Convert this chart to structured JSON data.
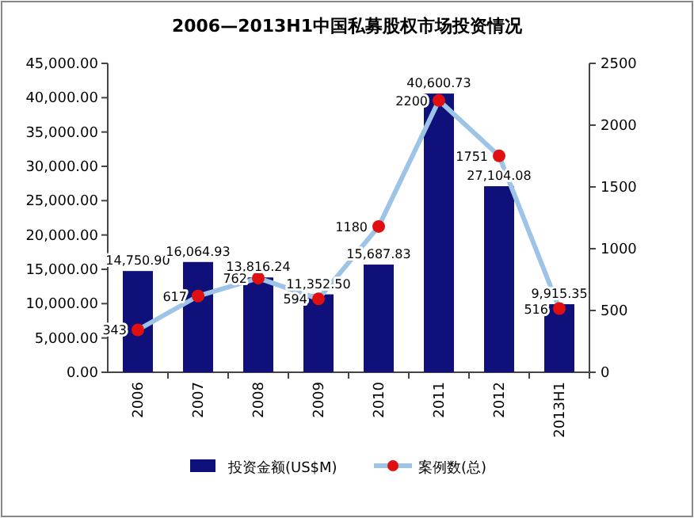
{
  "chart_data": {
    "type": "bar",
    "title": "2006—2013H1中国私募股权市场投资情况",
    "categories": [
      "2006",
      "2007",
      "2008",
      "2009",
      "2010",
      "2011",
      "2012",
      "2013H1"
    ],
    "series": [
      {
        "name": "投资金额(US$M)",
        "color": "#10107a",
        "values": [
          14750.9,
          16064.93,
          13816.24,
          11352.5,
          15687.83,
          40600.73,
          27104.08,
          9915.35
        ],
        "value_labels": [
          "14,750.90",
          "16,064.93",
          "13,816.24",
          "11,352.50",
          "15,687.83",
          "40,600.73",
          "27,104.08",
          "9,915.35"
        ]
      },
      {
        "name": "案例数(总)",
        "type": "line",
        "axis": "y2",
        "color": "#9dc3e6",
        "colors": [
          "#e01010",
          "#e01010",
          "#e01010",
          "#e01010",
          "#e01010",
          "#e01010",
          "#e01010",
          "#e01010"
        ],
        "marker": "circle",
        "values": [
          343,
          617,
          762,
          594,
          1180,
          2200,
          1751,
          516
        ],
        "value_labels": [
          "343",
          "617",
          "762",
          "594",
          "1180",
          "2200",
          "1751",
          "516"
        ]
      }
    ],
    "ylim": [
      0,
      45000
    ],
    "yticks": [
      {
        "value": 0,
        "label": "0.00"
      },
      {
        "value": 5000,
        "label": "5,000.00"
      },
      {
        "value": 10000,
        "label": "10,000.00"
      },
      {
        "value": 15000,
        "label": "15,000.00"
      },
      {
        "value": 20000,
        "label": "20,000.00"
      },
      {
        "value": 25000,
        "label": "25,000.00"
      },
      {
        "value": 30000,
        "label": "30,000.00"
      },
      {
        "value": 35000,
        "label": "35,000.00"
      },
      {
        "value": 40000,
        "label": "40,000.00"
      },
      {
        "value": 45000,
        "label": "45,000.00"
      }
    ],
    "y2lim": [
      0,
      2500
    ],
    "y2ticks": [
      0,
      500,
      1000,
      1500,
      2000,
      2500
    ],
    "legend": "bottom"
  }
}
